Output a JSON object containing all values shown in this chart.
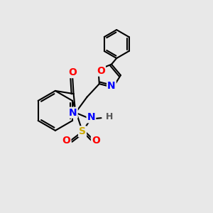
{
  "background_color": "#e8e8e8",
  "bond_color": "#000000",
  "atom_colors": {
    "N": "#0000ff",
    "O": "#ff0000",
    "S": "#ccaa00",
    "C": "#000000",
    "H": "#000000"
  },
  "figsize": [
    3.0,
    3.0
  ],
  "dpi": 100
}
